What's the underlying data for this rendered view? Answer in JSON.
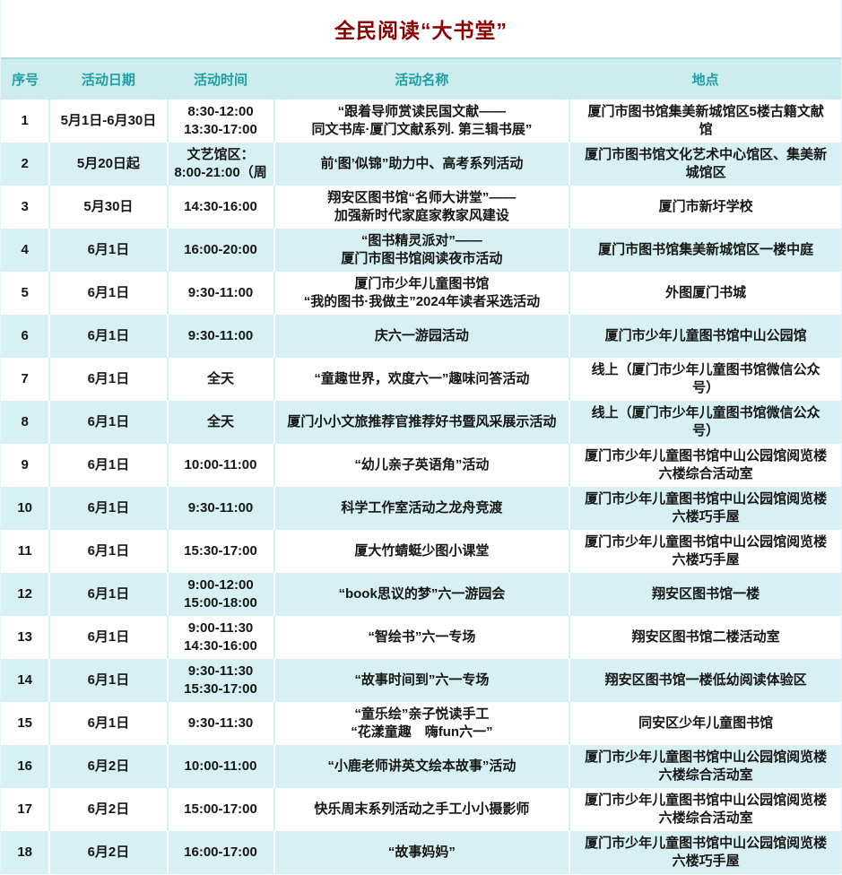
{
  "title": "全民阅读“大书堂”",
  "colors": {
    "title_text": "#8b0000",
    "header_bg": "#cdeced",
    "header_text": "#1d9fa4",
    "row_alt_bg": "#d6f0f3",
    "body_text": "#161616"
  },
  "table": {
    "headers": [
      "序号",
      "活动日期",
      "活动时间",
      "活动名称",
      "地点"
    ],
    "rows": [
      {
        "no": "1",
        "date": "5月1日-6月30日",
        "time": [
          "8:30-12:00",
          "13:30-17:00"
        ],
        "name": [
          "“跟着导师赏读民国文献——",
          "同文书库·厦门文献系列. 第三辑书展”"
        ],
        "location": [
          "厦门市图书馆集美新城馆区5楼古籍文献",
          "馆"
        ]
      },
      {
        "no": "2",
        "date": "5月20日起",
        "time": [
          "文艺馆区：",
          "8:00-21:00（周"
        ],
        "name": [
          "前‘图’似锦”助力中、高考系列活动"
        ],
        "location": [
          "厦门市图书馆文化艺术中心馆区、集美新",
          "城馆区"
        ]
      },
      {
        "no": "3",
        "date": "5月30日",
        "time": [
          "14:30-16:00"
        ],
        "name": [
          "翔安区图书馆“名师大讲堂”——",
          "加强新时代家庭家教家风建设"
        ],
        "location": [
          "厦门市新圩学校"
        ]
      },
      {
        "no": "4",
        "date": "6月1日",
        "time": [
          "16:00-20:00"
        ],
        "name": [
          "“图书精灵派对”——",
          "厦门市图书馆阅读夜市活动"
        ],
        "location": [
          "厦门市图书馆集美新城馆区一楼中庭"
        ]
      },
      {
        "no": "5",
        "date": "6月1日",
        "time": [
          "9:30-11:00"
        ],
        "name": [
          "厦门市少年儿童图书馆",
          "“我的图书·我做主”2024年读者采选活动"
        ],
        "location": [
          "外图厦门书城"
        ]
      },
      {
        "no": "6",
        "date": "6月1日",
        "time": [
          "9:30-11:00"
        ],
        "name": [
          "庆六一游园活动"
        ],
        "location": [
          "厦门市少年儿童图书馆中山公园馆"
        ]
      },
      {
        "no": "7",
        "date": "6月1日",
        "time": [
          "全天"
        ],
        "name": [
          "“童趣世界，欢度六一”趣味问答活动"
        ],
        "location": [
          "线上（厦门市少年儿童图书馆微信公众",
          "号）"
        ]
      },
      {
        "no": "8",
        "date": "6月1日",
        "time": [
          "全天"
        ],
        "name": [
          "厦门小小文旅推荐官推荐好书暨风采展示活动"
        ],
        "location": [
          "线上（厦门市少年儿童图书馆微信公众",
          "号）"
        ]
      },
      {
        "no": "9",
        "date": "6月1日",
        "time": [
          "10:00-11:00"
        ],
        "name": [
          "“幼儿亲子英语角”活动"
        ],
        "location": [
          "厦门市少年儿童图书馆中山公园馆阅览楼",
          "六楼综合活动室"
        ]
      },
      {
        "no": "10",
        "date": "6月1日",
        "time": [
          "9:30-11:00"
        ],
        "name": [
          "科学工作室活动之龙舟竞渡"
        ],
        "location": [
          "厦门市少年儿童图书馆中山公园馆阅览楼",
          "六楼巧手屋"
        ]
      },
      {
        "no": "11",
        "date": "6月1日",
        "time": [
          "15:30-17:00"
        ],
        "name": [
          "厦大竹蜻蜓少图小课堂"
        ],
        "location": [
          "厦门市少年儿童图书馆中山公园馆阅览楼",
          "六楼巧手屋"
        ]
      },
      {
        "no": "12",
        "date": "6月1日",
        "time": [
          "9:00-12:00",
          "15:00-18:00"
        ],
        "name": [
          "“book思议的梦”六一游园会"
        ],
        "location": [
          "翔安区图书馆一楼"
        ]
      },
      {
        "no": "13",
        "date": "6月1日",
        "time": [
          "9:00-11:30",
          "14:30-16:00"
        ],
        "name": [
          "“智绘书”六一专场"
        ],
        "location": [
          "翔安区图书馆二楼活动室"
        ]
      },
      {
        "no": "14",
        "date": "6月1日",
        "time": [
          "9:30-11:30",
          "15:30-17:00"
        ],
        "name": [
          "“故事时间到”六一专场"
        ],
        "location": [
          "翔安区图书馆一楼低幼阅读体验区"
        ]
      },
      {
        "no": "15",
        "date": "6月1日",
        "time": [
          "9:30-11:30"
        ],
        "name": [
          "“童乐绘”亲子悦读手工",
          "“花漾童趣　嗨fun六一”"
        ],
        "location": [
          "同安区少年儿童图书馆"
        ]
      },
      {
        "no": "16",
        "date": "6月2日",
        "time": [
          "10:00-11:00"
        ],
        "name": [
          "“小鹿老师讲英文绘本故事”活动"
        ],
        "location": [
          "厦门市少年儿童图书馆中山公园馆阅览楼",
          "六楼综合活动室"
        ]
      },
      {
        "no": "17",
        "date": "6月2日",
        "time": [
          "15:00-17:00"
        ],
        "name": [
          "快乐周末系列活动之手工小小摄影师"
        ],
        "location": [
          "厦门市少年儿童图书馆中山公园馆阅览楼",
          "六楼综合活动室"
        ]
      },
      {
        "no": "18",
        "date": "6月2日",
        "time": [
          "16:00-17:00"
        ],
        "name": [
          "“故事妈妈”"
        ],
        "location": [
          "厦门市少年儿童图书馆中山公园馆阅览楼",
          "六楼巧手屋"
        ]
      }
    ]
  }
}
